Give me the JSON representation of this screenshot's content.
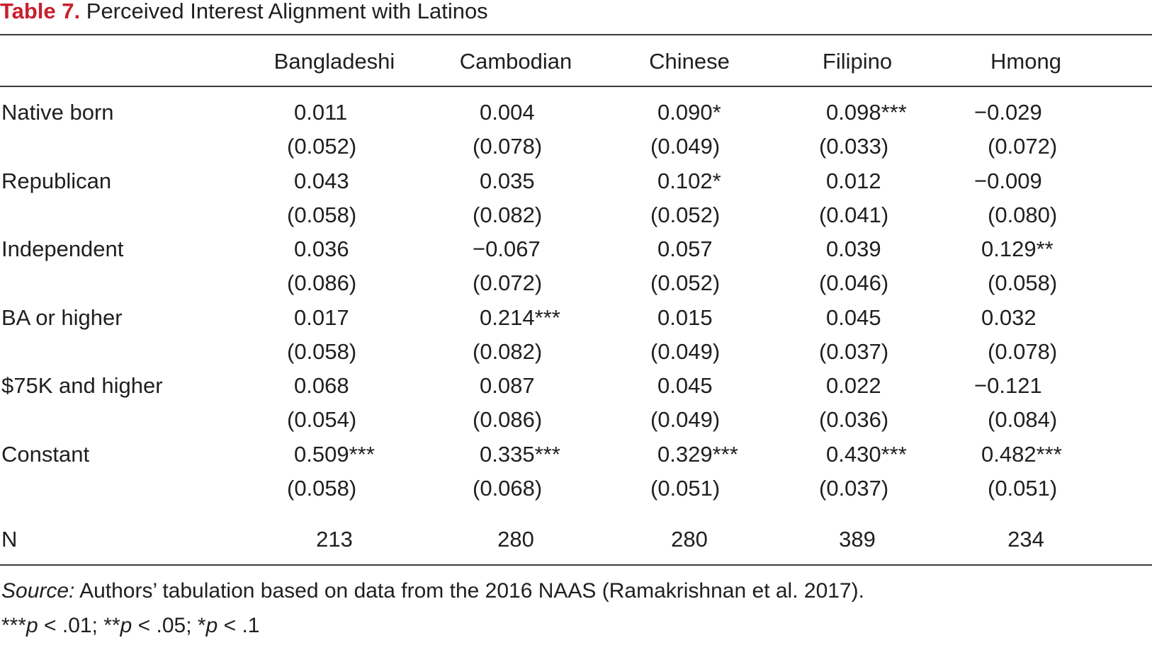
{
  "title": {
    "label": "Table 7.",
    "text": "Perceived Interest Alignment with Latinos"
  },
  "columns": [
    "Bangladeshi",
    "Cambodian",
    "Chinese",
    "Filipino",
    "Hmong"
  ],
  "rows": [
    {
      "label": "Native born",
      "coef": [
        "0.011",
        "0.004",
        "0.090*",
        "0.098***",
        "−0.029"
      ],
      "se": [
        "(0.052)",
        "(0.078)",
        "(0.049)",
        "(0.033)",
        "(0.072)"
      ]
    },
    {
      "label": "Republican",
      "coef": [
        "0.043",
        "0.035",
        "0.102*",
        "0.012",
        "−0.009"
      ],
      "se": [
        "(0.058)",
        "(0.082)",
        "(0.052)",
        "(0.041)",
        "(0.080)"
      ]
    },
    {
      "label": "Independent",
      "coef": [
        "0.036",
        "−0.067",
        "0.057",
        "0.039",
        "0.129**"
      ],
      "se": [
        "(0.086)",
        "(0.072)",
        "(0.052)",
        "(0.046)",
        "(0.058)"
      ]
    },
    {
      "label": "BA or higher",
      "coef": [
        "0.017",
        "0.214***",
        "0.015",
        "0.045",
        "0.032"
      ],
      "se": [
        "(0.058)",
        "(0.082)",
        "(0.049)",
        "(0.037)",
        "(0.078)"
      ]
    },
    {
      "label": "$75K and higher",
      "coef": [
        "0.068",
        "0.087",
        "0.045",
        "0.022",
        "−0.121"
      ],
      "se": [
        "(0.054)",
        "(0.086)",
        "(0.049)",
        "(0.036)",
        "(0.084)"
      ]
    },
    {
      "label": "Constant",
      "coef": [
        "0.509***",
        "0.335***",
        "0.329***",
        "0.430***",
        "0.482***"
      ],
      "se": [
        "(0.058)",
        "(0.068)",
        "(0.051)",
        "(0.037)",
        "(0.051)"
      ]
    }
  ],
  "n_row": {
    "label": "N",
    "values": [
      "213",
      "280",
      "280",
      "389",
      "234"
    ]
  },
  "notes": {
    "source_label": "Source:",
    "source_text": " Authors’ tabulation based on data from the 2016 NAAS (Ramakrishnan et al. 2017).",
    "sig_prefix1": "***",
    "sig_p1": "p",
    "sig_rest1": " < .01; **",
    "sig_p2": "p",
    "sig_rest2": " < .05; *",
    "sig_p3": "p",
    "sig_rest3": " < .1"
  },
  "colors": {
    "title_label": "#c8202d",
    "text": "#1f1f1f",
    "rule": "#3a3a3a"
  }
}
